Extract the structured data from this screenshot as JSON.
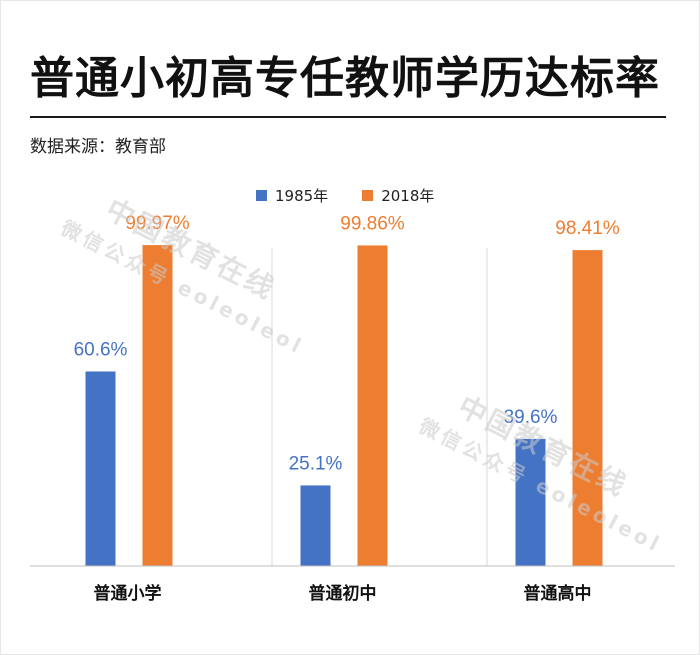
{
  "title": "普通小初高专任教师学历达标率",
  "source": "数据来源：教育部",
  "watermark": {
    "line1": "中国教育在线",
    "line2": "微信公众号 eoleoleol"
  },
  "colors": {
    "series_1985": "#4472c4",
    "series_2018": "#ed7d31",
    "divider": "#d9d9d9",
    "baseline": "#bfbfbf"
  },
  "chart_data": {
    "type": "bar",
    "title": "普通小初高专任教师学历达标率",
    "categories": [
      "普通小学",
      "普通初中",
      "普通高中"
    ],
    "series": [
      {
        "name": "1985年",
        "values": [
          60.6,
          25.1,
          39.6
        ],
        "labels": [
          "60.6%",
          "25.1%",
          "39.6%"
        ],
        "color": "#4472c4"
      },
      {
        "name": "2018年",
        "values": [
          99.97,
          99.86,
          98.41
        ],
        "labels": [
          "99.97%",
          "99.86%",
          "98.41%"
        ],
        "color": "#ed7d31"
      }
    ],
    "ylim": [
      0,
      100
    ],
    "grid": false,
    "legend": "top-center",
    "xlabel": "",
    "ylabel": ""
  }
}
